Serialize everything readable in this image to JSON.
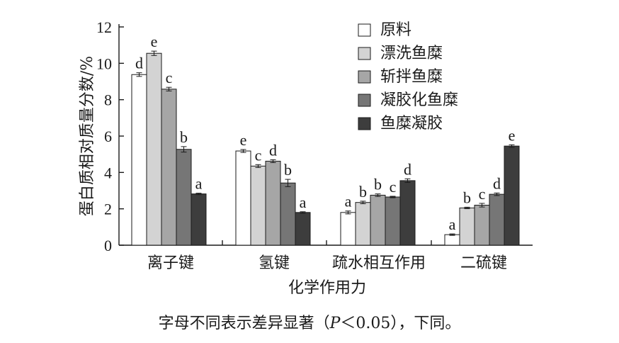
{
  "chart_data": {
    "type": "bar",
    "ylabel": "蛋白质相对质量分数/%",
    "xlabel": "化学作用力",
    "ylim": [
      0,
      12
    ],
    "yticks": [
      0,
      2,
      4,
      6,
      8,
      10,
      12
    ],
    "categories": [
      "离子键",
      "氢键",
      "疏水相互作用",
      "二硫键"
    ],
    "legend_position": "top-right",
    "series": [
      {
        "name": "原料",
        "color": "#ffffff",
        "values": [
          9.38,
          5.18,
          1.8,
          0.58
        ],
        "errors": [
          0.1,
          0.08,
          0.08,
          0.04
        ],
        "letters": [
          "d",
          "e",
          "a",
          "a"
        ]
      },
      {
        "name": "漂洗鱼糜",
        "color": "#d3d3d3",
        "values": [
          10.55,
          4.35,
          2.35,
          2.05
        ],
        "errors": [
          0.12,
          0.08,
          0.07,
          0.04
        ],
        "letters": [
          "e",
          "c",
          "b",
          "b"
        ]
      },
      {
        "name": "斩拌鱼糜",
        "color": "#a6a6a6",
        "values": [
          8.58,
          4.62,
          2.75,
          2.2
        ],
        "errors": [
          0.1,
          0.08,
          0.07,
          0.1
        ],
        "letters": [
          "c",
          "d",
          "b",
          "c"
        ]
      },
      {
        "name": "凝胶化鱼糜",
        "color": "#767676",
        "values": [
          5.27,
          3.42,
          2.65,
          2.8
        ],
        "errors": [
          0.15,
          0.2,
          0.04,
          0.07
        ],
        "letters": [
          "b",
          "b",
          "c",
          "d"
        ]
      },
      {
        "name": "鱼糜凝胶",
        "color": "#3d3d3d",
        "values": [
          2.82,
          1.8,
          3.55,
          5.45
        ],
        "errors": [
          0.04,
          0.04,
          0.1,
          0.07
        ],
        "letters": [
          "a",
          "a",
          "d",
          "e"
        ]
      }
    ]
  },
  "footnote": {
    "before": "字母不同表示差异显著（",
    "italic": "P",
    "after": "＜0.05），下同。"
  }
}
